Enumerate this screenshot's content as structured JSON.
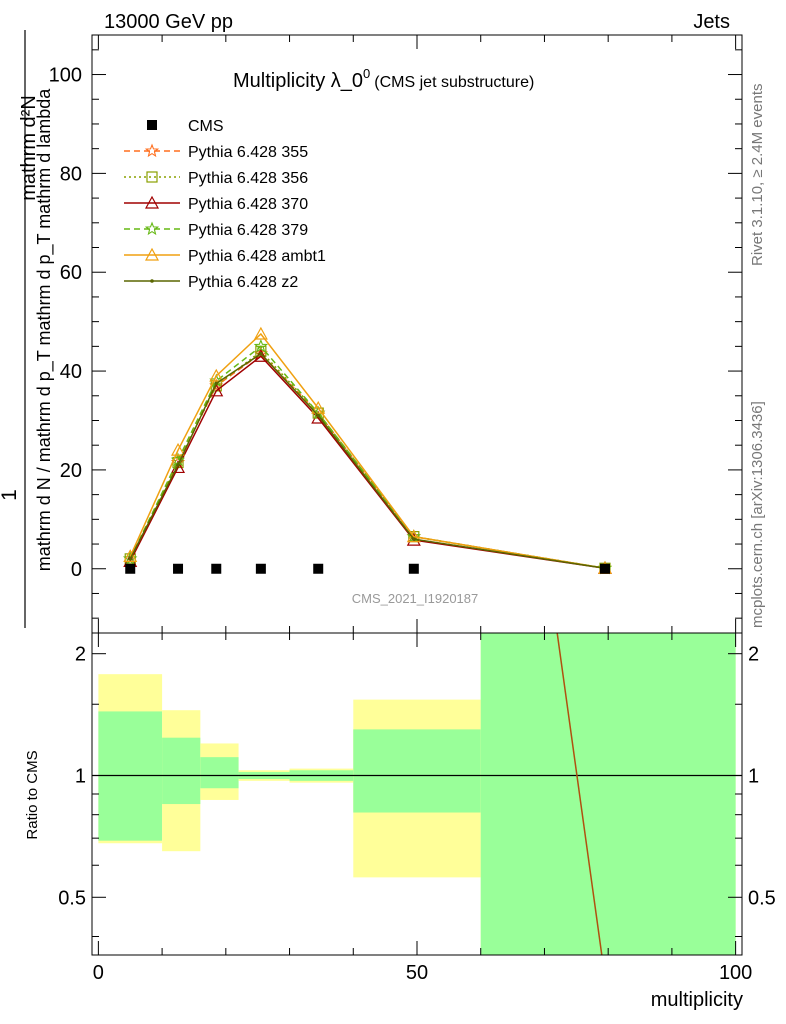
{
  "header": {
    "energy": "13000 GeV pp",
    "category": "Jets"
  },
  "side_labels": {
    "rivet": "Rivet 3.1.10, ≥ 2.4M events",
    "mcplots": "mcplots.cern.ch [arXiv:1306.3436]"
  },
  "chart_data": [
    {
      "type": "line",
      "title": "Multiplicity λ_0",
      "title_superscript": "0",
      "subtitle": "(CMS jet substructure)",
      "watermark": "CMS_2021_I1920187",
      "ylabel": "1 / mathrm d N / mathrm d p_T mathrm d^2N / mathrm d p_T mathrm d lambda",
      "ylabel_numerator": "mathrm d²N",
      "ylabel_denominator": "mathrm d N / mathrm d p_T mathrm d p_T mathrm d lambda",
      "xlim": [
        -1,
        101
      ],
      "ylim": [
        -13,
        108
      ],
      "yticks": [
        0,
        20,
        40,
        60,
        80,
        100
      ],
      "legend_placement": "top-left",
      "x": [
        5,
        12.5,
        18.5,
        25.5,
        34.5,
        49.5,
        79.5
      ],
      "series": [
        {
          "name": "CMS",
          "color": "#000000",
          "marker": "square",
          "line": "none",
          "values": [
            0,
            0,
            0,
            0,
            0,
            0,
            0
          ]
        },
        {
          "name": "Pythia 6.428 355",
          "color": "#ff6f1f",
          "marker": "star",
          "line": "dashed",
          "values": [
            2.0,
            21.5,
            37.0,
            43.5,
            31.5,
            6.5,
            0.1
          ]
        },
        {
          "name": "Pythia 6.428 356",
          "color": "#8aa000",
          "marker": "open-square",
          "line": "dotted",
          "values": [
            2.0,
            21.5,
            37.0,
            44.0,
            31.5,
            6.5,
            0.1
          ]
        },
        {
          "name": "Pythia 6.428 370",
          "color": "#a00000",
          "marker": "open-triangle",
          "line": "solid",
          "values": [
            1.5,
            20.5,
            36.0,
            43.0,
            30.5,
            5.8,
            0.1
          ]
        },
        {
          "name": "Pythia 6.428 379",
          "color": "#66b814",
          "marker": "star",
          "line": "dashed",
          "values": [
            2.0,
            22.0,
            38.0,
            45.0,
            31.5,
            6.5,
            0.1
          ]
        },
        {
          "name": "Pythia 6.428 ambt1",
          "color": "#f0a010",
          "marker": "open-triangle",
          "line": "solid",
          "values": [
            2.5,
            24.0,
            39.0,
            47.5,
            32.5,
            6.5,
            0.1
          ]
        },
        {
          "name": "Pythia 6.428 z2",
          "color": "#5a6600",
          "marker": "dot",
          "line": "solid",
          "values": [
            2.0,
            21.0,
            37.5,
            43.5,
            31.0,
            6.0,
            0.1
          ]
        }
      ]
    },
    {
      "type": "area",
      "ylabel": "Ratio to CMS",
      "xlabel": "multiplicity",
      "xlim": [
        -1,
        101
      ],
      "ylim": [
        0.36,
        2.25
      ],
      "xticks": [
        0,
        50,
        100
      ],
      "yticks": [
        0.5,
        1,
        2
      ],
      "reference_line": 1,
      "bands": [
        {
          "x0": 0,
          "x1": 10,
          "yellow": [
            0.68,
            1.78
          ],
          "green": [
            0.69,
            1.44
          ]
        },
        {
          "x0": 10,
          "x1": 16,
          "yellow": [
            0.65,
            1.45
          ],
          "green": [
            0.85,
            1.24
          ]
        },
        {
          "x0": 16,
          "x1": 22,
          "yellow": [
            0.87,
            1.2
          ],
          "green": [
            0.93,
            1.11
          ]
        },
        {
          "x0": 22,
          "x1": 30,
          "yellow": [
            0.97,
            1.03
          ],
          "green": [
            0.98,
            1.02
          ]
        },
        {
          "x0": 30,
          "x1": 40,
          "yellow": [
            0.96,
            1.04
          ],
          "green": [
            0.97,
            1.03
          ]
        },
        {
          "x0": 40,
          "x1": 60,
          "yellow": [
            0.56,
            1.54
          ],
          "green": [
            0.81,
            1.3
          ]
        },
        {
          "x0": 60,
          "x1": 100,
          "yellow": [
            0.36,
            2.25
          ],
          "green": [
            0.36,
            2.25
          ]
        }
      ],
      "ratio_line": {
        "color": "#b05010",
        "points": [
          [
            72,
            2.25
          ],
          [
            79,
            0.36
          ]
        ]
      }
    }
  ]
}
